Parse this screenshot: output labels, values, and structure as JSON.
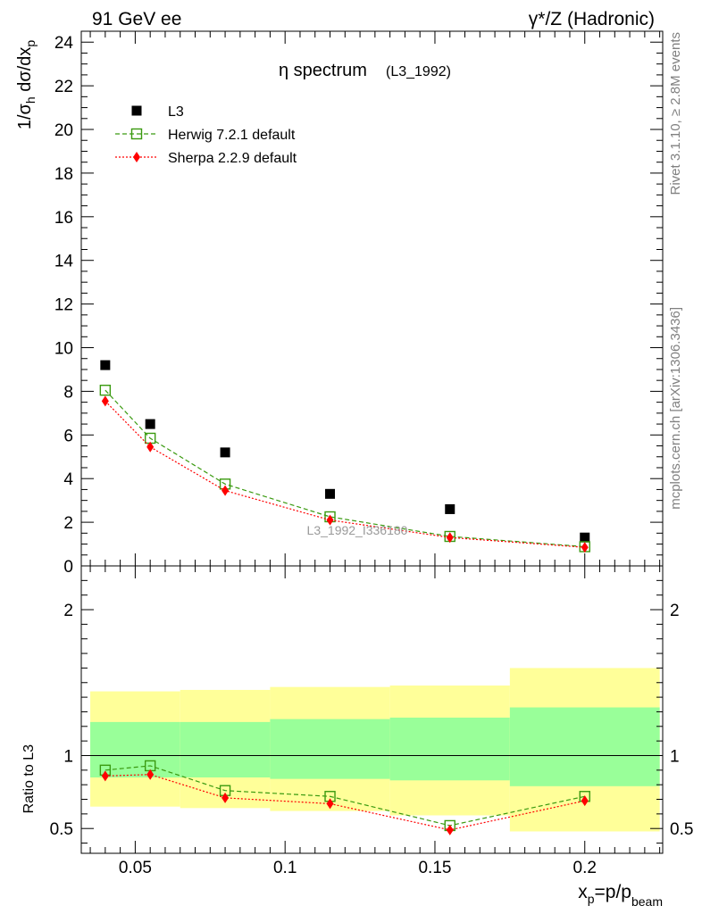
{
  "header": {
    "left": "91 GeV ee",
    "right": "γ*/Z (Hadronic)"
  },
  "side_labels": {
    "top": "Rivet 3.1.10, ≥ 2.8M events",
    "bottom": "mcplots.cern.ch [arXiv:1306.3436]"
  },
  "watermark": "L3_1992_I336180",
  "chart_data": [
    {
      "type": "scatter",
      "panel": "main",
      "title": "η spectrum",
      "title_note": "(L3_1992)",
      "ylabel": "1/σ_h dσ/dx_p",
      "xlim": [
        0.032,
        0.226
      ],
      "ylim": [
        0,
        24.5
      ],
      "y_ticks": [
        0,
        2,
        4,
        6,
        8,
        10,
        12,
        14,
        16,
        18,
        20,
        22,
        24
      ],
      "x": [
        0.04,
        0.055,
        0.08,
        0.115,
        0.155,
        0.2
      ],
      "legend_position": "top-left",
      "series": [
        {
          "name": "L3",
          "color": "#000000",
          "marker": "square-filled",
          "values": [
            9.2,
            6.5,
            5.2,
            3.3,
            2.6,
            1.3
          ]
        },
        {
          "name": "Herwig 7.2.1 default",
          "color": "#3a9a10",
          "marker": "square-open",
          "line": "dashed",
          "values": [
            8.05,
            5.85,
            3.75,
            2.25,
            1.35,
            0.88
          ]
        },
        {
          "name": "Sherpa 2.2.9 default",
          "color": "#ff0000",
          "marker": "diamond",
          "line": "dotted",
          "values": [
            7.55,
            5.45,
            3.45,
            2.1,
            1.3,
            0.85
          ]
        }
      ]
    },
    {
      "type": "scatter",
      "panel": "ratio",
      "ylabel": "Ratio to L3",
      "xlabel": "x_p=p/p_beam",
      "xlim": [
        0.032,
        0.226
      ],
      "ylim": [
        0.33,
        2.3
      ],
      "y_ticks": [
        0.5,
        1,
        2
      ],
      "x_ticks": [
        0.05,
        0.1,
        0.15,
        0.2
      ],
      "reference_line": 1,
      "bins": [
        {
          "x_low": 0.035,
          "x_high": 0.065,
          "inner": [
            0.85,
            1.23
          ],
          "outer": [
            0.65,
            1.44
          ]
        },
        {
          "x_low": 0.065,
          "x_high": 0.095,
          "inner": [
            0.85,
            1.23
          ],
          "outer": [
            0.64,
            1.45
          ]
        },
        {
          "x_low": 0.095,
          "x_high": 0.135,
          "inner": [
            0.84,
            1.25
          ],
          "outer": [
            0.62,
            1.47
          ]
        },
        {
          "x_low": 0.135,
          "x_high": 0.175,
          "inner": [
            0.83,
            1.26
          ],
          "outer": [
            0.59,
            1.48
          ]
        },
        {
          "x_low": 0.175,
          "x_high": 0.225,
          "inner": [
            0.79,
            1.33
          ],
          "outer": [
            0.48,
            1.6
          ]
        }
      ],
      "x": [
        0.04,
        0.055,
        0.08,
        0.115,
        0.155,
        0.2
      ],
      "series": [
        {
          "name": "Herwig 7.2.1 default",
          "color": "#3a9a10",
          "marker": "square-open",
          "line": "dashed",
          "values": [
            0.9,
            0.93,
            0.76,
            0.72,
            0.52,
            0.72
          ]
        },
        {
          "name": "Sherpa 2.2.9 default",
          "color": "#ff0000",
          "marker": "diamond",
          "line": "dotted",
          "values": [
            0.86,
            0.87,
            0.71,
            0.67,
            0.49,
            0.69
          ]
        }
      ]
    }
  ]
}
